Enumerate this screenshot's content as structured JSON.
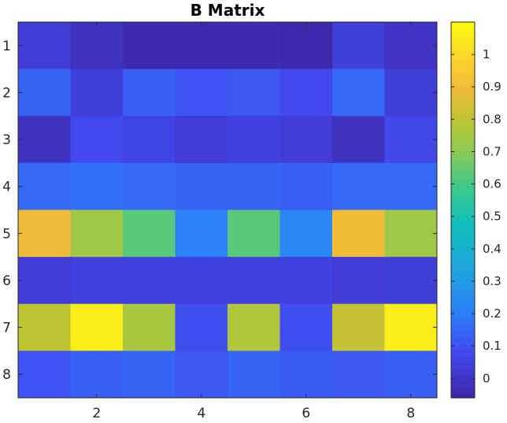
{
  "chart_data": {
    "type": "heatmap",
    "title": "B Matrix",
    "xlabel": "",
    "ylabel": "",
    "colormap": "parula",
    "clim": [
      -0.06,
      1.1
    ],
    "x_tick_labels": [
      "2",
      "4",
      "6",
      "8"
    ],
    "x_tick_values": [
      2,
      4,
      6,
      8
    ],
    "y_tick_labels": [
      "1",
      "2",
      "3",
      "4",
      "5",
      "6",
      "7",
      "8"
    ],
    "y_tick_values": [
      1,
      2,
      3,
      4,
      5,
      6,
      7,
      8
    ],
    "colorbar_tick_labels": [
      "0",
      "0.1",
      "0.2",
      "0.3",
      "0.4",
      "0.5",
      "0.6",
      "0.7",
      "0.8",
      "0.9",
      "1"
    ],
    "colorbar_tick_values": [
      0,
      0.1,
      0.2,
      0.3,
      0.4,
      0.5,
      0.6,
      0.7,
      0.8,
      0.9,
      1.0
    ],
    "rows": [
      [
        0.03,
        -0.01,
        -0.04,
        -0.04,
        -0.04,
        -0.05,
        0.04,
        0.0
      ],
      [
        0.14,
        0.04,
        0.13,
        0.1,
        0.11,
        0.08,
        0.15,
        0.04
      ],
      [
        -0.01,
        0.08,
        0.06,
        0.03,
        0.05,
        0.03,
        -0.01,
        0.07
      ],
      [
        0.15,
        0.16,
        0.15,
        0.14,
        0.14,
        0.13,
        0.15,
        0.15
      ],
      [
        0.89,
        0.74,
        0.63,
        0.21,
        0.63,
        0.23,
        0.9,
        0.74
      ],
      [
        0.03,
        0.05,
        0.05,
        0.05,
        0.05,
        0.05,
        0.03,
        0.04
      ],
      [
        0.8,
        1.06,
        0.76,
        0.09,
        0.77,
        0.09,
        0.81,
        1.06
      ],
      [
        0.1,
        0.13,
        0.14,
        0.11,
        0.14,
        0.12,
        0.11,
        0.13
      ]
    ]
  }
}
